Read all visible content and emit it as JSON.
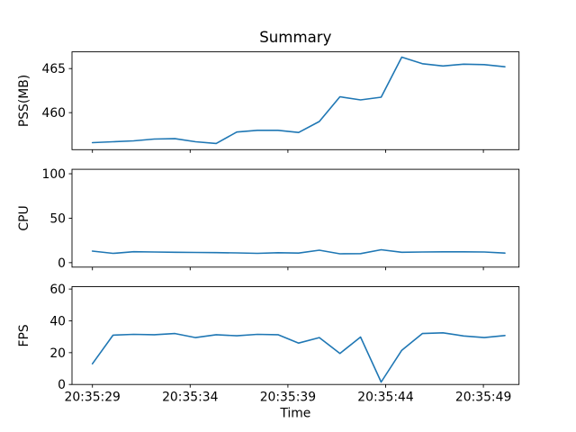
{
  "chart_data": {
    "type": "line",
    "title": "Summary",
    "xlabel": "Time",
    "x_tick_labels": [
      "20:35:29",
      "20:35:34",
      "20:35:39",
      "20:35:44",
      "20:35:49"
    ],
    "x_tick_seconds": [
      0,
      5,
      10,
      15,
      20
    ],
    "sample_interval_seconds": 1.055,
    "line_color": "#1f77b4",
    "grid": "off",
    "legend": "none",
    "subplots": [
      {
        "ylabel": "PSS(MB)",
        "ylim": [
          455.8,
          466.9
        ],
        "yticks": [
          {
            "label": "460",
            "value": 460
          },
          {
            "label": "465",
            "value": 465
          }
        ],
        "values": [
          456.6,
          456.7,
          456.8,
          457.0,
          457.05,
          456.7,
          456.5,
          457.8,
          458.0,
          458.0,
          457.75,
          459.0,
          461.8,
          461.45,
          461.75,
          466.3,
          465.55,
          465.3,
          465.5,
          465.45,
          465.2
        ]
      },
      {
        "ylabel": "CPU",
        "ylim": [
          -5,
          105
        ],
        "yticks": [
          {
            "label": "0",
            "value": 0
          },
          {
            "label": "50",
            "value": 50
          },
          {
            "label": "100",
            "value": 100
          }
        ],
        "values": [
          13,
          10.5,
          12.3,
          12,
          11.7,
          11.5,
          11.3,
          11,
          10.5,
          11.2,
          10.8,
          14,
          10,
          10.2,
          14.5,
          11.7,
          12,
          12.2,
          12.2,
          12,
          10.8
        ]
      },
      {
        "ylabel": "FPS",
        "ylim": [
          0,
          61.5
        ],
        "yticks": [
          {
            "label": "0",
            "value": 0
          },
          {
            "label": "20",
            "value": 20
          },
          {
            "label": "40",
            "value": 40
          },
          {
            "label": "60",
            "value": 60
          }
        ],
        "values": [
          13,
          31,
          31.5,
          31.3,
          32,
          29.5,
          31.3,
          30.6,
          31.5,
          31.3,
          26,
          29.5,
          19.5,
          29.8,
          1.5,
          21.5,
          32,
          32.5,
          30.5,
          29.5,
          30.8
        ]
      }
    ]
  }
}
